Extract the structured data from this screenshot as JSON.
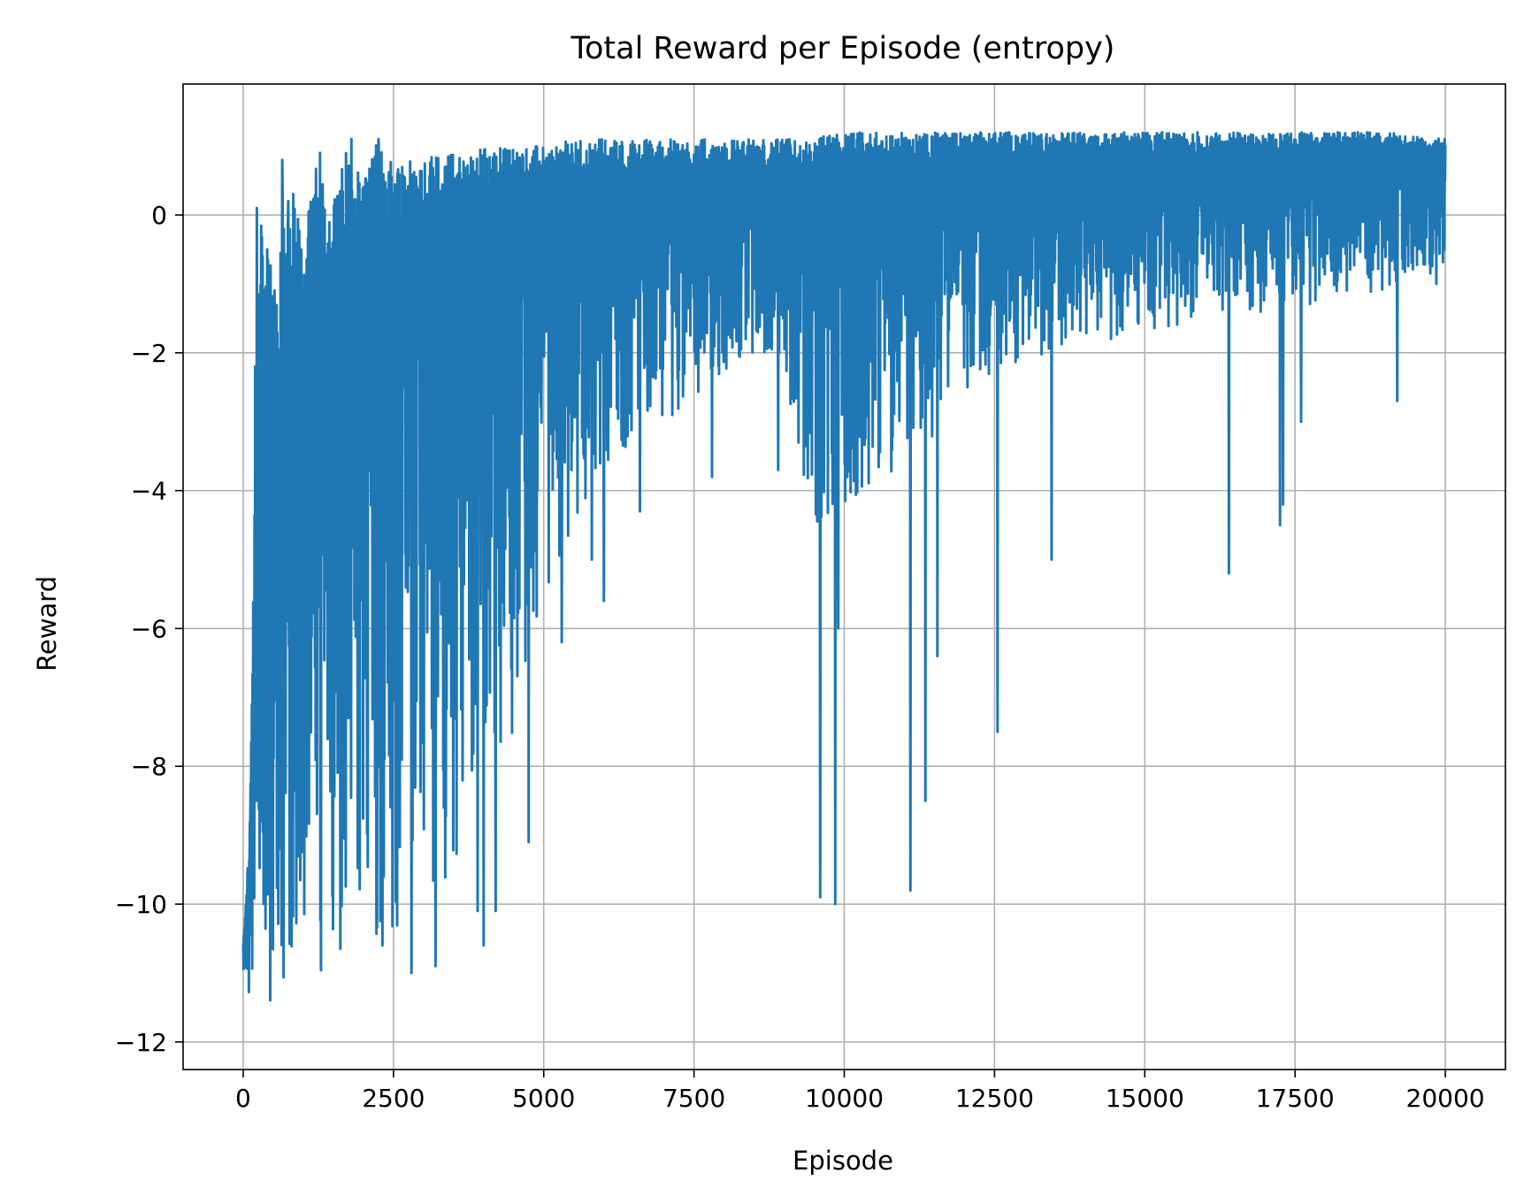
{
  "colors": {
    "line": "#1f77b4",
    "grid": "#b0b0b0",
    "axes": "#000000",
    "background": "#ffffff"
  },
  "chart_data": {
    "type": "line",
    "title": "Total Reward per Episode (entropy)",
    "xlabel": "Episode",
    "ylabel": "Reward",
    "xlim": [
      -1000,
      21000
    ],
    "ylim": [
      -12.4,
      1.9
    ],
    "grid": true,
    "legend": "none",
    "x_ticks": [
      0,
      2500,
      5000,
      7500,
      10000,
      12500,
      15000,
      17500,
      20000
    ],
    "x_tick_labels": [
      "0",
      "2500",
      "5000",
      "7500",
      "10000",
      "12500",
      "15000",
      "17500",
      "20000"
    ],
    "y_ticks": [
      0,
      -2,
      -4,
      -6,
      -8,
      -10,
      -12
    ],
    "y_tick_labels": [
      "0",
      "−2",
      "−4",
      "−6",
      "−8",
      "−10",
      "−12"
    ],
    "series": [
      {
        "x_range": [
          0,
          20000
        ],
        "episodes": 20000,
        "envelope": {
          "episode": [
            0,
            100,
            250,
            500,
            750,
            1000,
            1250,
            1500,
            1750,
            2000,
            2250,
            2500,
            2750,
            3000,
            3250,
            3500,
            3750,
            4000,
            4250,
            4500,
            4750,
            5000,
            5500,
            6000,
            6500,
            7000,
            7500,
            8000,
            8500,
            9000,
            9200,
            9500,
            9750,
            10000,
            10500,
            11000,
            11500,
            12000,
            12500,
            13000,
            14000,
            15000,
            16000,
            17000,
            18000,
            19000,
            20000
          ],
          "max": [
            -10.6,
            -9.5,
            0.1,
            -0.5,
            0.8,
            -0.4,
            0.9,
            0.2,
            1.1,
            0.6,
            1.1,
            0.8,
            0.9,
            0.9,
            0.9,
            0.9,
            0.9,
            1.0,
            1.0,
            1.0,
            1.0,
            1.0,
            1.1,
            1.1,
            1.1,
            1.1,
            1.1,
            1.1,
            1.1,
            1.1,
            1.1,
            1.1,
            1.2,
            1.2,
            1.2,
            1.2,
            1.2,
            1.2,
            1.2,
            1.2,
            1.2,
            1.2,
            1.2,
            1.2,
            1.2,
            1.2,
            1.1
          ],
          "low": [
            -11.5,
            -11.6,
            -11.5,
            -11.4,
            -11.3,
            -11.3,
            -11.2,
            -11.2,
            -11.1,
            -11.0,
            -10.9,
            -10.8,
            -10.6,
            -10.4,
            -10.2,
            -9.8,
            -9.0,
            -8.6,
            -8.3,
            -7.8,
            -6.8,
            -5.5,
            -4.5,
            -3.8,
            -3.4,
            -3.0,
            -2.7,
            -2.3,
            -2.1,
            -2.0,
            -3.8,
            -4.6,
            -4.6,
            -4.4,
            -4.0,
            -3.6,
            -3.2,
            -2.8,
            -2.4,
            -2.1,
            -1.9,
            -1.7,
            -1.5,
            -1.4,
            -1.3,
            -1.1,
            -0.8
          ],
          "dense_low": [
            -10.5,
            -9.0,
            -7.0,
            -5.5,
            -4.5,
            -3.5,
            -3.0,
            -2.7,
            -2.4,
            -2.1,
            -1.9,
            -1.6,
            -1.4,
            -1.3,
            -1.2,
            -1.1,
            -1.0,
            -0.9,
            -0.8,
            -0.7,
            -0.6,
            -0.5,
            -0.4,
            -0.3,
            -0.2,
            -0.1,
            0.0,
            0.0,
            0.1,
            0.1,
            0.0,
            -0.1,
            -0.1,
            0.0,
            0.1,
            0.2,
            0.2,
            0.3,
            0.3,
            0.3,
            0.4,
            0.4,
            0.4,
            0.4,
            0.5,
            0.5,
            0.5
          ]
        },
        "spikes": [
          {
            "x": 200,
            "y": -2.2
          },
          {
            "x": 230,
            "y": 0.1
          },
          {
            "x": 320,
            "y": -0.6
          },
          {
            "x": 400,
            "y": -0.5
          },
          {
            "x": 550,
            "y": -1.6
          },
          {
            "x": 650,
            "y": 0.8
          },
          {
            "x": 750,
            "y": 0.2
          },
          {
            "x": 900,
            "y": -0.4
          },
          {
            "x": 1150,
            "y": -2.6
          },
          {
            "x": 1280,
            "y": 0.9
          },
          {
            "x": 1800,
            "y": 1.1
          },
          {
            "x": 2250,
            "y": 1.1
          },
          {
            "x": 2800,
            "y": -11.0
          },
          {
            "x": 3200,
            "y": -10.9
          },
          {
            "x": 3900,
            "y": -10.1
          },
          {
            "x": 4000,
            "y": -10.6
          },
          {
            "x": 4200,
            "y": -10.1
          },
          {
            "x": 4750,
            "y": -9.1
          },
          {
            "x": 5300,
            "y": -6.2
          },
          {
            "x": 6000,
            "y": -5.6
          },
          {
            "x": 5800,
            "y": -5.0
          },
          {
            "x": 6600,
            "y": -4.3
          },
          {
            "x": 7800,
            "y": -3.8
          },
          {
            "x": 8900,
            "y": -3.7
          },
          {
            "x": 9600,
            "y": -9.9
          },
          {
            "x": 9850,
            "y": -10.0
          },
          {
            "x": 9900,
            "y": -6.0
          },
          {
            "x": 11100,
            "y": -9.8
          },
          {
            "x": 11350,
            "y": -8.5
          },
          {
            "x": 11550,
            "y": -6.4
          },
          {
            "x": 12550,
            "y": -7.5
          },
          {
            "x": 13450,
            "y": -5.0
          },
          {
            "x": 16400,
            "y": -5.2
          },
          {
            "x": 17250,
            "y": -4.5
          },
          {
            "x": 17300,
            "y": -4.2
          },
          {
            "x": 17600,
            "y": -3.0
          },
          {
            "x": 19200,
            "y": -2.7
          },
          {
            "x": 19850,
            "y": -1.0
          }
        ]
      }
    ]
  }
}
